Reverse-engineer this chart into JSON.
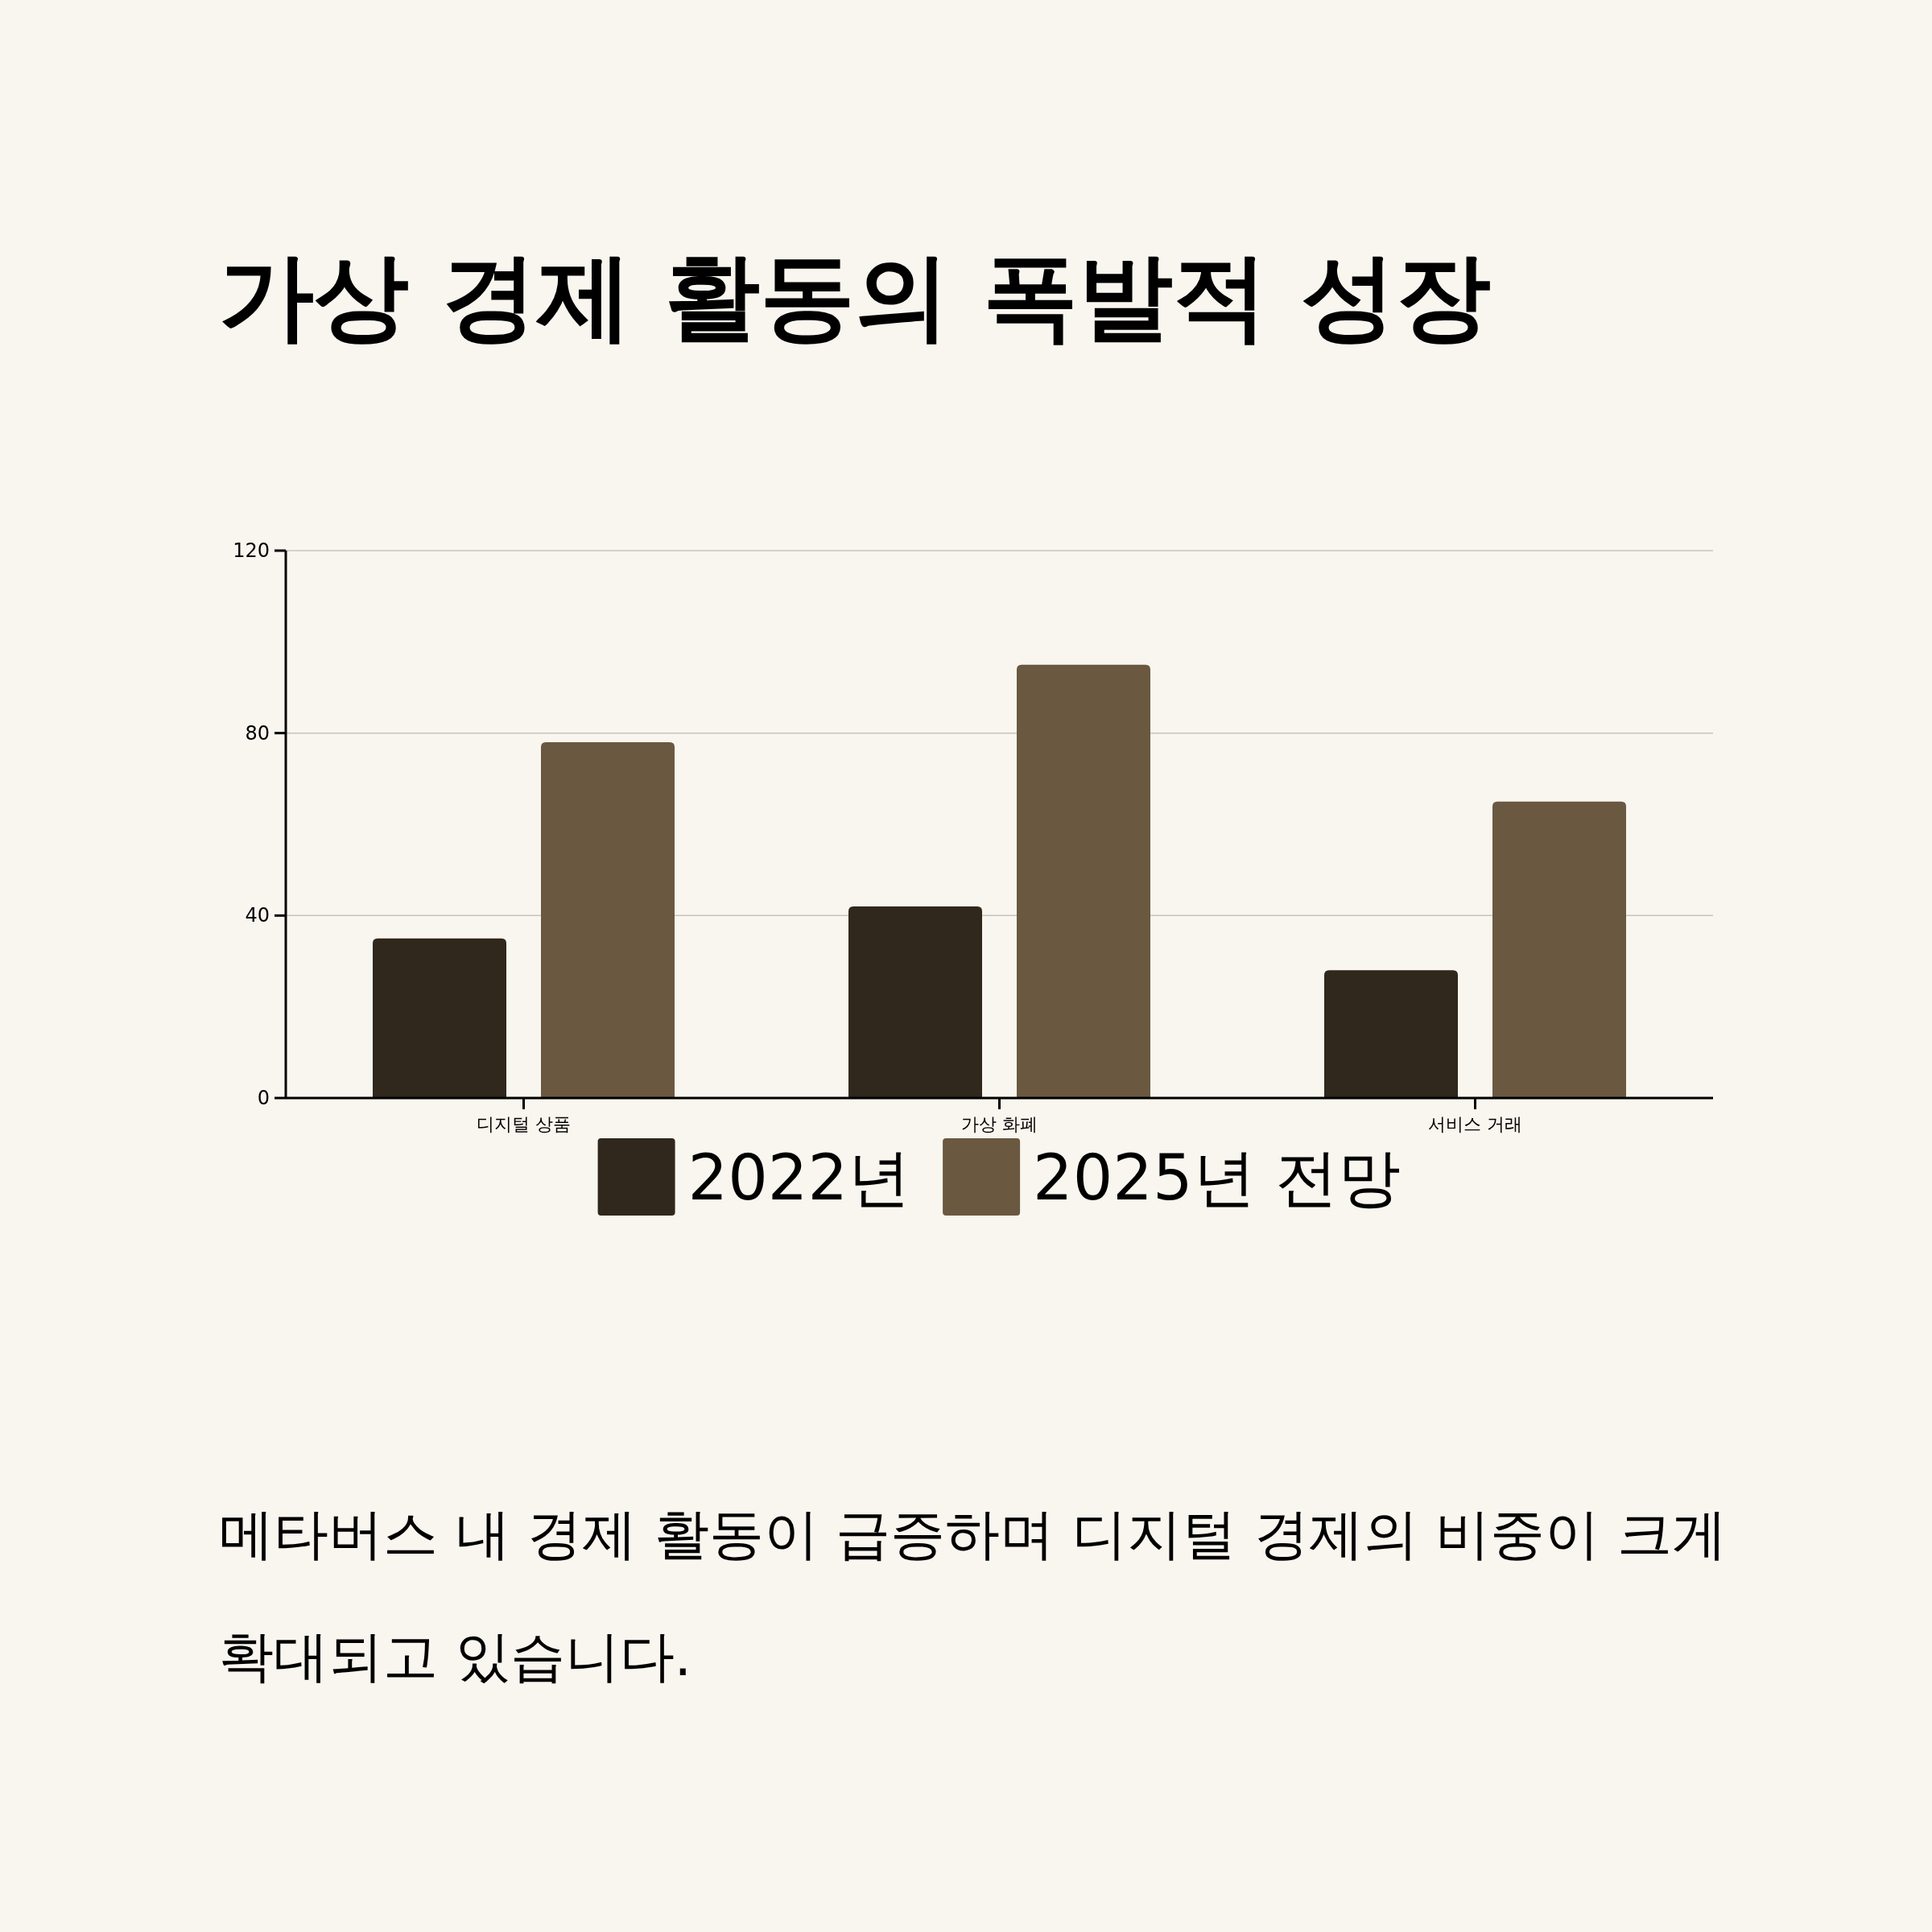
{
  "chart_data": {
    "type": "bar",
    "title": "가상 경제 활동의 폭발적 성장",
    "categories": [
      "디지털 상품",
      "가상 화폐",
      "서비스 거래"
    ],
    "series": [
      {
        "name": "2022년",
        "color": "#30271d",
        "values": [
          35,
          42,
          28
        ]
      },
      {
        "name": "2025년 전망",
        "color": "#6b5840",
        "values": [
          78,
          95,
          65
        ]
      }
    ],
    "ylim": [
      0,
      120
    ],
    "yticks": [
      0,
      40,
      80,
      120
    ],
    "grid": "y",
    "legend": "bottom",
    "annotations": [
      "메타버스 내 경제 활동이 급증하며 디지털 경제의 비중이 크게 확대되고 있습니다."
    ]
  }
}
